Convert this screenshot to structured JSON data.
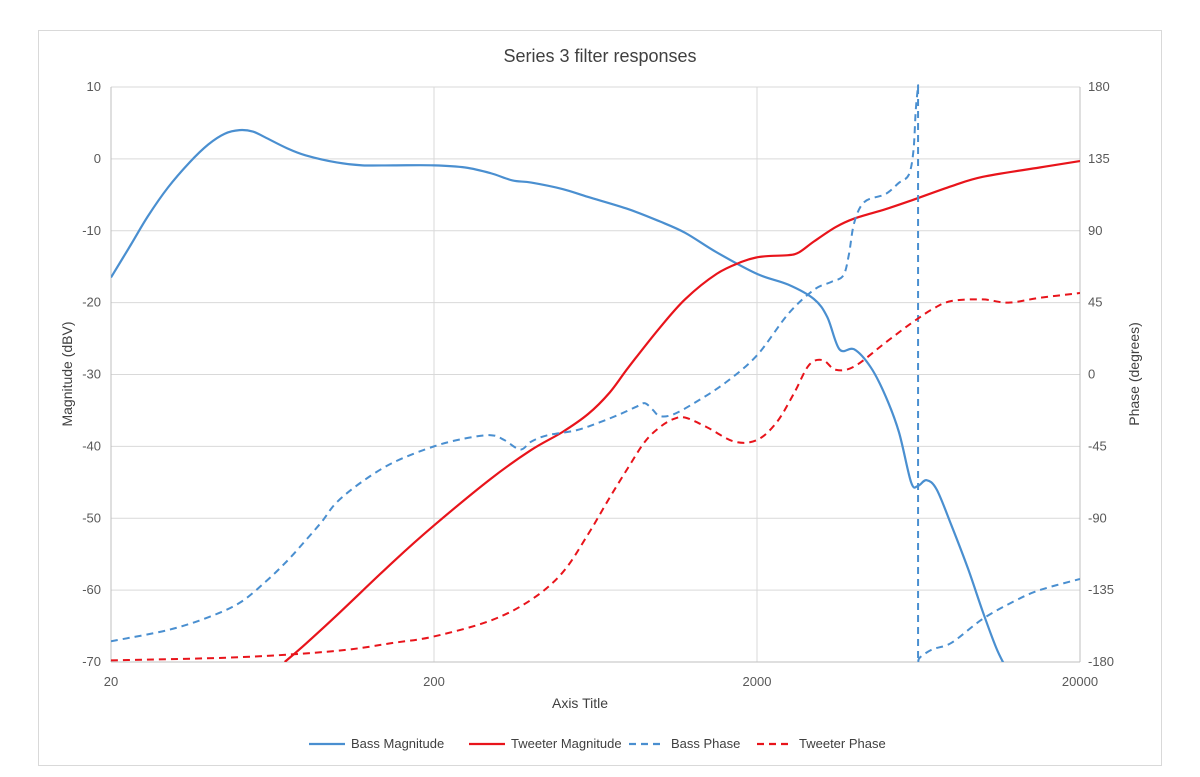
{
  "chart_data": {
    "type": "line",
    "title": "Series 3 filter responses",
    "xlabel": "Axis Title",
    "ylabel": "Magnitude (dBV)",
    "y2label": "Phase (degrees)",
    "x_scale": "log",
    "xlim": [
      20,
      20000
    ],
    "ylim": [
      -70,
      10
    ],
    "y2lim": [
      -180,
      180
    ],
    "x_ticks": [
      "20",
      "200",
      "2000",
      "20000"
    ],
    "y_ticks": [
      "10",
      "0",
      "-10",
      "-20",
      "-30",
      "-40",
      "-50",
      "-60",
      "-70"
    ],
    "y2_ticks": [
      "180",
      "135",
      "90",
      "45",
      "0",
      "-45",
      "-90",
      "-135",
      "-180"
    ],
    "grid": true,
    "legend_position": "bottom",
    "series": [
      {
        "name": "Bass Magnitude",
        "axis": "left",
        "color": "#4a8fd0",
        "dash": "solid",
        "points": [
          [
            20,
            -16.5
          ],
          [
            23,
            -12
          ],
          [
            26,
            -8
          ],
          [
            30,
            -4
          ],
          [
            35,
            -0.5
          ],
          [
            40,
            2
          ],
          [
            45,
            3.5
          ],
          [
            50,
            4
          ],
          [
            55,
            3.8
          ],
          [
            60,
            3
          ],
          [
            70,
            1.5
          ],
          [
            80,
            0.5
          ],
          [
            100,
            -0.5
          ],
          [
            120,
            -0.9
          ],
          [
            150,
            -0.9
          ],
          [
            200,
            -0.9
          ],
          [
            250,
            -1.2
          ],
          [
            300,
            -2
          ],
          [
            350,
            -3
          ],
          [
            400,
            -3.3
          ],
          [
            500,
            -4.2
          ],
          [
            600,
            -5.3
          ],
          [
            800,
            -7
          ],
          [
            1000,
            -8.7
          ],
          [
            1200,
            -10.3
          ],
          [
            1500,
            -13
          ],
          [
            2000,
            -16
          ],
          [
            2500,
            -17.5
          ],
          [
            3000,
            -19.5
          ],
          [
            3300,
            -22
          ],
          [
            3600,
            -26.5
          ],
          [
            4000,
            -26.5
          ],
          [
            4500,
            -29
          ],
          [
            5000,
            -33
          ],
          [
            5500,
            -38
          ],
          [
            6000,
            -45
          ],
          [
            6300,
            -45.5
          ],
          [
            6700,
            -44.7
          ],
          [
            7200,
            -46
          ],
          [
            8000,
            -51
          ],
          [
            9000,
            -57
          ],
          [
            10000,
            -63
          ],
          [
            11000,
            -68
          ],
          [
            11700,
            -70.5
          ]
        ]
      },
      {
        "name": "Tweeter Magnitude",
        "axis": "left",
        "color": "#e8141b",
        "dash": "solid",
        "points": [
          [
            69,
            -70
          ],
          [
            80,
            -67.5
          ],
          [
            100,
            -63.5
          ],
          [
            150,
            -56
          ],
          [
            200,
            -51
          ],
          [
            300,
            -44.5
          ],
          [
            400,
            -40.5
          ],
          [
            500,
            -38
          ],
          [
            600,
            -35.5
          ],
          [
            700,
            -32.5
          ],
          [
            800,
            -29
          ],
          [
            1000,
            -23.5
          ],
          [
            1200,
            -19.5
          ],
          [
            1500,
            -16
          ],
          [
            1800,
            -14.3
          ],
          [
            2000,
            -13.7
          ],
          [
            2200,
            -13.5
          ],
          [
            2500,
            -13.4
          ],
          [
            2700,
            -13
          ],
          [
            3000,
            -11.5
          ],
          [
            3500,
            -9.5
          ],
          [
            4000,
            -8.3
          ],
          [
            5000,
            -7
          ],
          [
            6000,
            -5.8
          ],
          [
            8000,
            -3.8
          ],
          [
            10000,
            -2.5
          ],
          [
            15000,
            -1.2
          ],
          [
            20000,
            -0.3
          ]
        ]
      },
      {
        "name": "Bass Phase",
        "axis": "right",
        "color": "#4a8fd0",
        "dash": "dashed",
        "points": [
          [
            20,
            -167
          ],
          [
            30,
            -160
          ],
          [
            40,
            -152
          ],
          [
            50,
            -143
          ],
          [
            60,
            -130
          ],
          [
            70,
            -117
          ],
          [
            80,
            -104
          ],
          [
            90,
            -92
          ],
          [
            100,
            -80
          ],
          [
            120,
            -67
          ],
          [
            150,
            -55
          ],
          [
            200,
            -45
          ],
          [
            250,
            -40
          ],
          [
            300,
            -38
          ],
          [
            330,
            -41
          ],
          [
            370,
            -47
          ],
          [
            400,
            -42
          ],
          [
            450,
            -38
          ],
          [
            550,
            -35
          ],
          [
            650,
            -30
          ],
          [
            750,
            -25
          ],
          [
            850,
            -20
          ],
          [
            900,
            -18
          ],
          [
            950,
            -22
          ],
          [
            1000,
            -26
          ],
          [
            1100,
            -25
          ],
          [
            1300,
            -17
          ],
          [
            1600,
            -5
          ],
          [
            2000,
            12
          ],
          [
            2500,
            38
          ],
          [
            3000,
            53
          ],
          [
            3400,
            58
          ],
          [
            3700,
            62
          ],
          [
            3850,
            75
          ],
          [
            4000,
            95
          ],
          [
            4300,
            108
          ],
          [
            5000,
            113
          ],
          [
            5500,
            120
          ],
          [
            5900,
            125
          ],
          [
            6100,
            140
          ],
          [
            6200,
            165
          ],
          [
            6300,
            180
          ],
          [
            6310,
            -180
          ],
          [
            6400,
            -177
          ],
          [
            7000,
            -172
          ],
          [
            8000,
            -168
          ],
          [
            10000,
            -153
          ],
          [
            12500,
            -142
          ],
          [
            15000,
            -135
          ],
          [
            20000,
            -128
          ]
        ]
      },
      {
        "name": "Tweeter Phase",
        "axis": "right",
        "color": "#e8141b",
        "dash": "dashed",
        "points": [
          [
            20,
            -179
          ],
          [
            50,
            -177
          ],
          [
            100,
            -173
          ],
          [
            150,
            -168
          ],
          [
            200,
            -164
          ],
          [
            300,
            -154
          ],
          [
            400,
            -141
          ],
          [
            500,
            -124
          ],
          [
            600,
            -100
          ],
          [
            700,
            -77
          ],
          [
            800,
            -58
          ],
          [
            900,
            -42
          ],
          [
            1000,
            -33
          ],
          [
            1100,
            -28
          ],
          [
            1200,
            -27
          ],
          [
            1400,
            -33
          ],
          [
            1700,
            -42
          ],
          [
            2000,
            -41
          ],
          [
            2300,
            -30
          ],
          [
            2600,
            -12
          ],
          [
            2900,
            6
          ],
          [
            3200,
            9
          ],
          [
            3500,
            3
          ],
          [
            4000,
            5
          ],
          [
            5000,
            20
          ],
          [
            6000,
            32
          ],
          [
            7000,
            41
          ],
          [
            8000,
            46
          ],
          [
            10000,
            47
          ],
          [
            12000,
            45
          ],
          [
            15000,
            48
          ],
          [
            20000,
            51
          ]
        ]
      }
    ],
    "legend": [
      "Bass Magnitude",
      "Tweeter Magnitude",
      "Bass Phase",
      "Tweeter Phase"
    ]
  }
}
